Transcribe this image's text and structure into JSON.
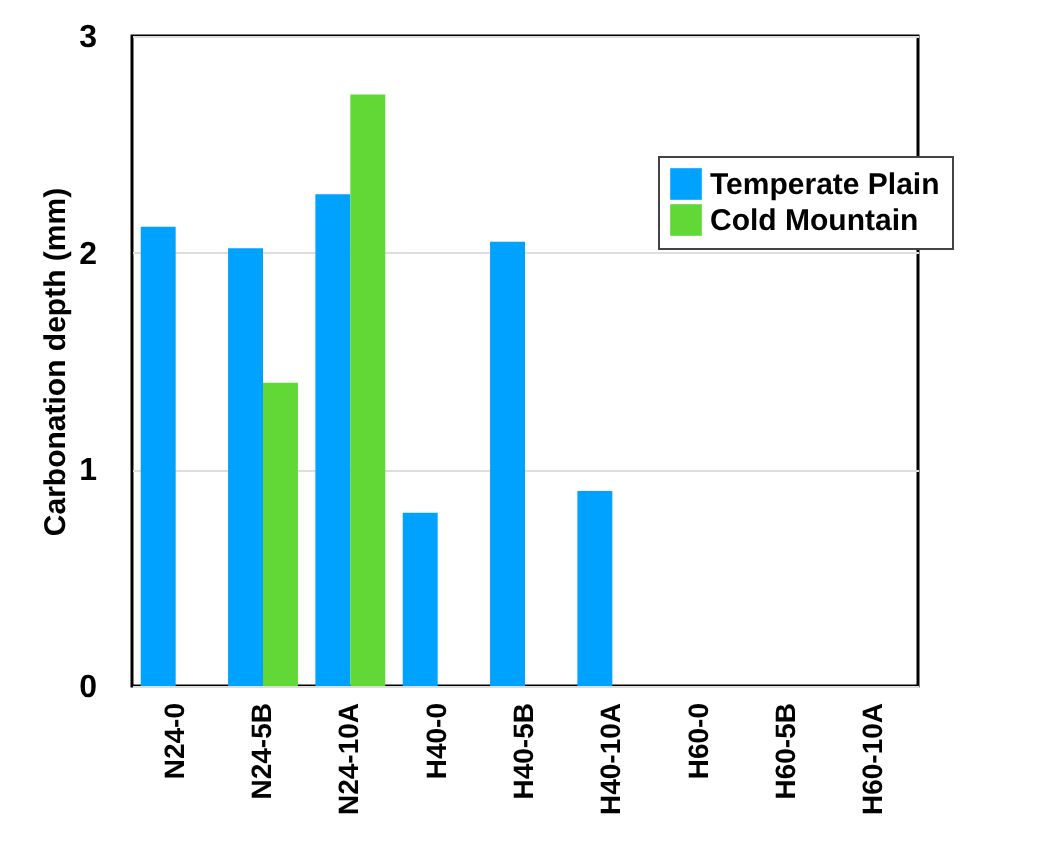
{
  "chart_data": {
    "type": "bar",
    "ylabel": "Carbonation depth (mm)",
    "categories": [
      "N24-0",
      "N24-5B",
      "N24-10A",
      "H40-0",
      "H40-5B",
      "H40-10A",
      "H60-0",
      "H60-5B",
      "H60-10A"
    ],
    "series": [
      {
        "name": "Temperate Plain",
        "color": "#00a2ff",
        "values": [
          2.12,
          2.02,
          2.27,
          0.8,
          2.05,
          0.9,
          null,
          null,
          null
        ]
      },
      {
        "name": "Cold Mountain",
        "color": "#61d836",
        "values": [
          null,
          1.4,
          2.73,
          null,
          null,
          null,
          null,
          null,
          null
        ]
      }
    ],
    "ylim": [
      0,
      3
    ],
    "yticks": [
      0,
      1,
      2,
      3
    ],
    "grid": "y",
    "legend": "top right"
  }
}
